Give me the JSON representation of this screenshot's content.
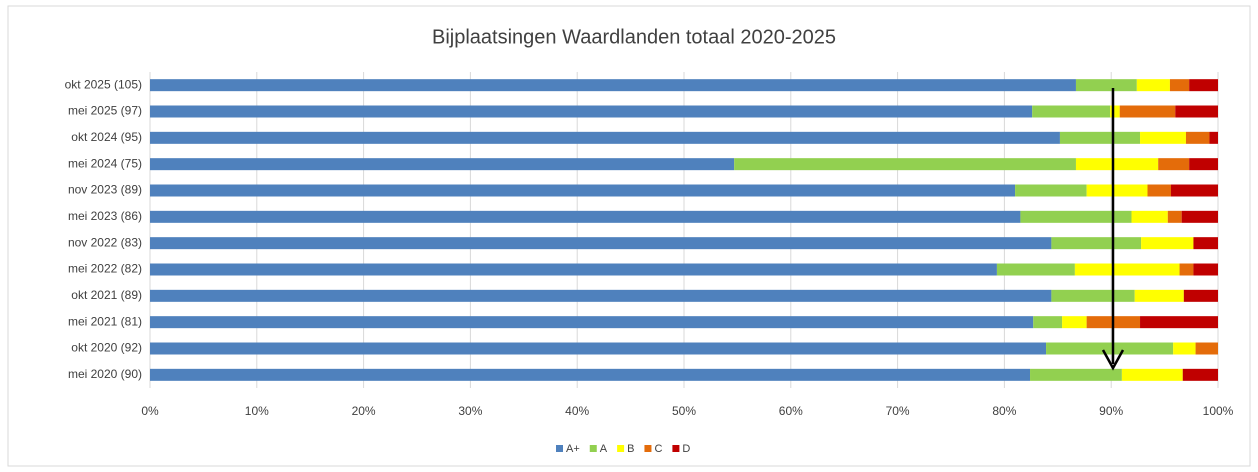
{
  "chart_data": {
    "type": "stacked_barh",
    "title": "Bijplaatsingen Waardlanden totaal 2020-2025",
    "categories": [
      "okt 2025 (105)",
      "mei 2025 (97)",
      "okt 2024 (95)",
      "mei 2024 (75)",
      "nov 2023 (89)",
      "mei 2023 (86)",
      "nov 2022 (83)",
      "mei 2022 (82)",
      "okt 2021 (89)",
      "mei 2021 (81)",
      "okt 2020 (92)",
      "mei 2020 (90)"
    ],
    "series": [
      {
        "name": "A+",
        "color": "#4f81bd",
        "values": [
          86.7,
          82.6,
          85.2,
          54.7,
          81.0,
          81.5,
          84.4,
          79.3,
          84.4,
          82.7,
          83.9,
          82.4
        ]
      },
      {
        "name": "A",
        "color": "#92d050",
        "values": [
          5.7,
          7.3,
          7.5,
          32.0,
          6.7,
          10.4,
          8.4,
          7.3,
          7.8,
          2.7,
          11.9,
          8.6
        ]
      },
      {
        "name": "B",
        "color": "#ffff00",
        "values": [
          3.1,
          0.9,
          4.3,
          7.7,
          5.7,
          3.4,
          4.9,
          9.8,
          4.6,
          2.3,
          2.1,
          5.7
        ]
      },
      {
        "name": "C",
        "color": "#e46c0a",
        "values": [
          1.8,
          5.2,
          2.2,
          2.9,
          2.2,
          1.3,
          0,
          1.3,
          0,
          5.0,
          2.1,
          0
        ]
      },
      {
        "name": "D",
        "color": "#c00000",
        "values": [
          2.7,
          4.0,
          0.8,
          2.7,
          4.4,
          3.4,
          2.3,
          2.3,
          3.2,
          7.3,
          0,
          3.3
        ]
      }
    ],
    "xlim": [
      0,
      100
    ],
    "xticks": [
      {
        "value": 0,
        "label": "0%"
      },
      {
        "value": 10,
        "label": "10%"
      },
      {
        "value": 20,
        "label": "20%"
      },
      {
        "value": 30,
        "label": "30%"
      },
      {
        "value": 40,
        "label": "40%"
      },
      {
        "value": 50,
        "label": "50%"
      },
      {
        "value": 60,
        "label": "60%"
      },
      {
        "value": 70,
        "label": "70%"
      },
      {
        "value": 80,
        "label": "80%"
      },
      {
        "value": 90,
        "label": "90%"
      },
      {
        "value": 100,
        "label": "100%"
      }
    ],
    "grid": true
  }
}
